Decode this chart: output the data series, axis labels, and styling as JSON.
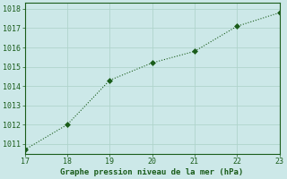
{
  "x": [
    17,
    18,
    19,
    20,
    21,
    22,
    23
  ],
  "y": [
    1010.7,
    1012.0,
    1014.3,
    1015.2,
    1015.8,
    1017.1,
    1017.8
  ],
  "line_color": "#1a5c1a",
  "marker_color": "#1a5c1a",
  "bg_color": "#cce8e8",
  "grid_color": "#b0d4cc",
  "xlabel": "Graphe pression niveau de la mer (hPa)",
  "xlabel_color": "#1a5c1a",
  "tick_color": "#1a5c1a",
  "spine_color": "#1a5c1a",
  "xlim": [
    17,
    23
  ],
  "ylim": [
    1010.5,
    1018.3
  ],
  "xticks": [
    17,
    18,
    19,
    20,
    21,
    22,
    23
  ],
  "yticks": [
    1011,
    1012,
    1013,
    1014,
    1015,
    1016,
    1017,
    1018
  ],
  "figsize": [
    3.2,
    2.0
  ],
  "dpi": 100
}
